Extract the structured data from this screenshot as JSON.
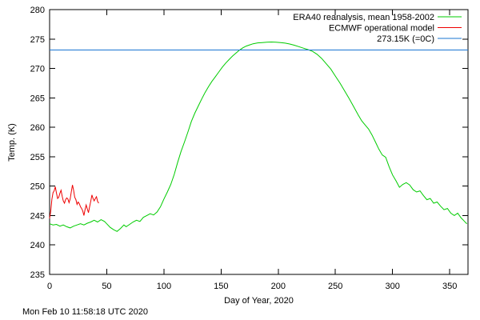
{
  "window": {
    "background": "#ffffff"
  },
  "chart_data": {
    "type": "line",
    "title": "",
    "xlabel": "Day of Year, 2020",
    "ylabel": "Temp. (K)",
    "timestamp": "Mon Feb 10 11:58:18 UTC 2020",
    "xlim": [
      0,
      366
    ],
    "ylim": [
      235,
      280
    ],
    "xticks": [
      0,
      50,
      100,
      150,
      200,
      250,
      300,
      350
    ],
    "yticks": [
      235,
      240,
      245,
      250,
      255,
      260,
      265,
      270,
      275,
      280
    ],
    "grid": false,
    "legend_position": "top-right-inside",
    "axis_color": "#000000",
    "series": [
      {
        "id": "era40",
        "name": "ERA40 reanalysis, mean 1958-2002",
        "color": "#00cc00",
        "points": [
          [
            0,
            243.6
          ],
          [
            3,
            243.4
          ],
          [
            6,
            243.5
          ],
          [
            9,
            243.2
          ],
          [
            12,
            243.4
          ],
          [
            15,
            243.1
          ],
          [
            18,
            242.9
          ],
          [
            21,
            243.2
          ],
          [
            24,
            243.4
          ],
          [
            27,
            243.6
          ],
          [
            30,
            243.4
          ],
          [
            33,
            243.7
          ],
          [
            36,
            243.9
          ],
          [
            39,
            244.2
          ],
          [
            42,
            243.9
          ],
          [
            45,
            244.3
          ],
          [
            48,
            244.0
          ],
          [
            50,
            243.6
          ],
          [
            53,
            243.0
          ],
          [
            56,
            242.6
          ],
          [
            59,
            242.3
          ],
          [
            62,
            242.8
          ],
          [
            65,
            243.4
          ],
          [
            67,
            243.1
          ],
          [
            70,
            243.5
          ],
          [
            73,
            243.9
          ],
          [
            76,
            244.2
          ],
          [
            79,
            244.0
          ],
          [
            82,
            244.7
          ],
          [
            85,
            245.0
          ],
          [
            88,
            245.3
          ],
          [
            91,
            245.1
          ],
          [
            94,
            245.6
          ],
          [
            97,
            246.5
          ],
          [
            100,
            247.8
          ],
          [
            103,
            249.0
          ],
          [
            106,
            250.3
          ],
          [
            109,
            252.0
          ],
          [
            112,
            254.0
          ],
          [
            115,
            255.9
          ],
          [
            118,
            257.5
          ],
          [
            121,
            259.2
          ],
          [
            124,
            261.0
          ],
          [
            127,
            262.4
          ],
          [
            130,
            263.6
          ],
          [
            133,
            264.8
          ],
          [
            136,
            265.9
          ],
          [
            139,
            266.9
          ],
          [
            142,
            267.8
          ],
          [
            145,
            268.6
          ],
          [
            148,
            269.4
          ],
          [
            151,
            270.2
          ],
          [
            154,
            270.9
          ],
          [
            157,
            271.5
          ],
          [
            160,
            272.1
          ],
          [
            163,
            272.6
          ],
          [
            166,
            273.1
          ],
          [
            169,
            273.5
          ],
          [
            172,
            273.8
          ],
          [
            175,
            274.0
          ],
          [
            178,
            274.2
          ],
          [
            182,
            274.35
          ],
          [
            186,
            274.4
          ],
          [
            190,
            274.45
          ],
          [
            194,
            274.5
          ],
          [
            198,
            274.45
          ],
          [
            202,
            274.4
          ],
          [
            206,
            274.3
          ],
          [
            210,
            274.15
          ],
          [
            214,
            273.95
          ],
          [
            218,
            273.7
          ],
          [
            222,
            273.45
          ],
          [
            226,
            273.2
          ],
          [
            230,
            272.9
          ],
          [
            234,
            272.4
          ],
          [
            238,
            271.7
          ],
          [
            242,
            270.8
          ],
          [
            246,
            269.9
          ],
          [
            250,
            268.7
          ],
          [
            254,
            267.5
          ],
          [
            258,
            266.2
          ],
          [
            262,
            264.9
          ],
          [
            266,
            263.5
          ],
          [
            270,
            262.1
          ],
          [
            273,
            261.1
          ],
          [
            276,
            260.4
          ],
          [
            279,
            259.7
          ],
          [
            282,
            258.7
          ],
          [
            285,
            257.5
          ],
          [
            288,
            256.3
          ],
          [
            291,
            255.3
          ],
          [
            294,
            254.9
          ],
          [
            297,
            253.3
          ],
          [
            300,
            251.9
          ],
          [
            303,
            250.9
          ],
          [
            306,
            249.8
          ],
          [
            309,
            250.3
          ],
          [
            312,
            250.6
          ],
          [
            315,
            250.2
          ],
          [
            318,
            249.4
          ],
          [
            321,
            249.0
          ],
          [
            324,
            249.2
          ],
          [
            327,
            248.4
          ],
          [
            330,
            247.7
          ],
          [
            333,
            247.9
          ],
          [
            336,
            247.1
          ],
          [
            339,
            247.3
          ],
          [
            342,
            246.6
          ],
          [
            345,
            246.0
          ],
          [
            348,
            246.2
          ],
          [
            351,
            245.4
          ],
          [
            354,
            245.0
          ],
          [
            357,
            245.4
          ],
          [
            360,
            244.6
          ],
          [
            362,
            244.2
          ],
          [
            364,
            243.8
          ],
          [
            365,
            243.6
          ]
        ]
      },
      {
        "id": "ecmwf",
        "name": "ECMWF operational model",
        "color": "#ee0000",
        "points": [
          [
            0,
            244.5
          ],
          [
            1,
            245.7
          ],
          [
            2,
            247.8
          ],
          [
            3,
            248.9
          ],
          [
            4,
            249.2
          ],
          [
            5,
            249.9
          ],
          [
            6,
            248.8
          ],
          [
            7,
            247.9
          ],
          [
            8,
            248.1
          ],
          [
            9,
            248.8
          ],
          [
            10,
            249.3
          ],
          [
            11,
            248.3
          ],
          [
            12,
            247.5
          ],
          [
            13,
            247.1
          ],
          [
            14,
            247.7
          ],
          [
            15,
            248.0
          ],
          [
            16,
            247.8
          ],
          [
            17,
            247.2
          ],
          [
            18,
            247.8
          ],
          [
            19,
            249.1
          ],
          [
            20,
            250.2
          ],
          [
            21,
            249.3
          ],
          [
            22,
            248.1
          ],
          [
            23,
            247.7
          ],
          [
            24,
            246.9
          ],
          [
            25,
            247.3
          ],
          [
            26,
            247.0
          ],
          [
            27,
            246.5
          ],
          [
            28,
            246.2
          ],
          [
            29,
            245.8
          ],
          [
            30,
            245.0
          ],
          [
            31,
            246.0
          ],
          [
            32,
            246.8
          ],
          [
            33,
            246.1
          ],
          [
            34,
            245.5
          ],
          [
            35,
            246.5
          ],
          [
            36,
            247.4
          ],
          [
            37,
            248.5
          ],
          [
            38,
            247.9
          ],
          [
            39,
            247.5
          ],
          [
            40,
            247.9
          ],
          [
            41,
            248.2
          ],
          [
            42,
            247.4
          ],
          [
            43,
            247.1
          ]
        ]
      },
      {
        "id": "freezing",
        "name": "273.15K (=0C)",
        "color": "#1874d2",
        "points": [
          [
            0,
            273.15
          ],
          [
            366,
            273.15
          ]
        ]
      }
    ]
  }
}
